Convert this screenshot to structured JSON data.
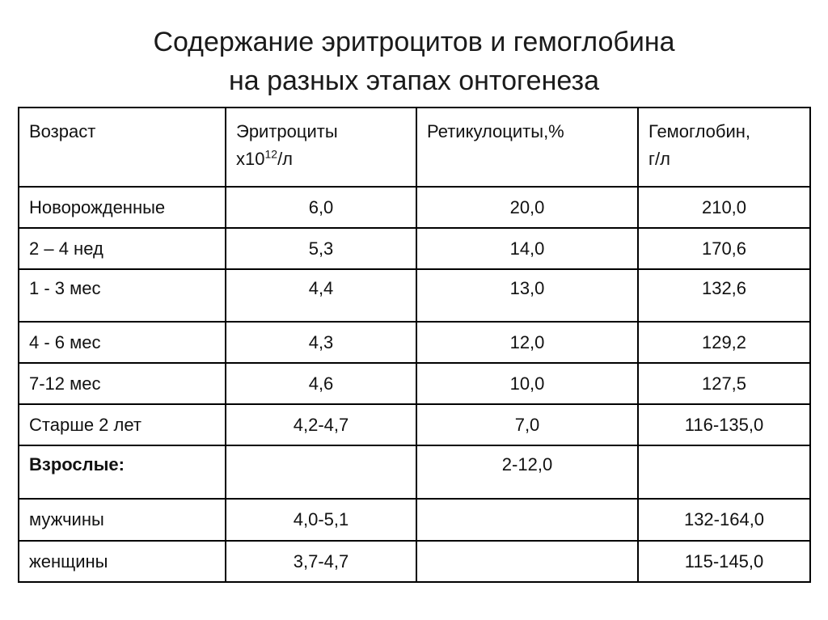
{
  "title": {
    "line1": "Содержание эритроцитов и гемоглобина",
    "line2": "на разных этапах онтогенеза"
  },
  "table": {
    "headers": {
      "age": "Возраст",
      "erythrocytes_line1": "Эритроциты",
      "erythrocytes_base": "х10",
      "erythrocytes_exp": "12",
      "erythrocytes_unit": "/л",
      "reticulocytes": "Ретикулоциты,%",
      "hemoglobin_line1": "Гемоглобин,",
      "hemoglobin_line2": "г/л"
    },
    "rows": [
      {
        "age": "Новорожденные",
        "erythrocytes": "6,0",
        "reticulocytes": "20,0",
        "hemoglobin": "210,0"
      },
      {
        "age": "2 – 4 нед",
        "erythrocytes": "5,3",
        "reticulocytes": "14,0",
        "hemoglobin": "170,6"
      },
      {
        "age": "1 - 3 мес",
        "erythrocytes": "4,4",
        "reticulocytes": "13,0",
        "hemoglobin": "132,6"
      },
      {
        "age": "4 - 6 мес",
        "erythrocytes": "4,3",
        "reticulocytes": "12,0",
        "hemoglobin": "129,2"
      },
      {
        "age": "7-12 мес",
        "erythrocytes": "4,6",
        "reticulocytes": "10,0",
        "hemoglobin": "127,5"
      },
      {
        "age": "Старше 2 лет",
        "erythrocytes": "4,2-4,7",
        "reticulocytes": "7,0",
        "hemoglobin": "116-135,0"
      },
      {
        "age": "Взрослые:",
        "erythrocytes": "",
        "reticulocytes": "2-12,0",
        "hemoglobin": ""
      },
      {
        "age": "мужчины",
        "erythrocytes": "4,0-5,1",
        "reticulocytes": "",
        "hemoglobin": "132-164,0"
      },
      {
        "age": "женщины",
        "erythrocytes": "3,7-4,7",
        "reticulocytes": "",
        "hemoglobin": "115-145,0"
      }
    ]
  }
}
